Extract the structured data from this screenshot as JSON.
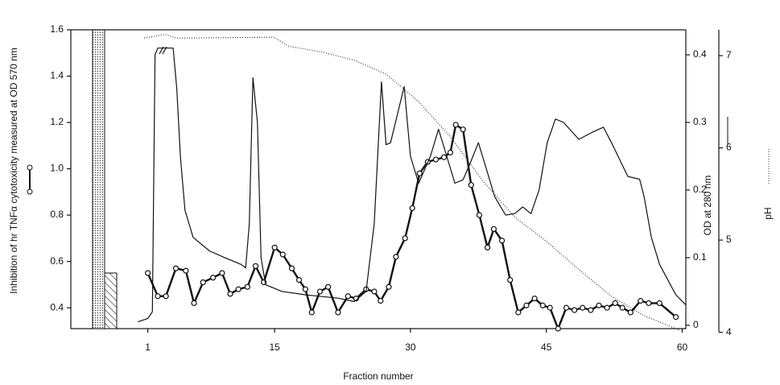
{
  "chart_data": {
    "type": "line",
    "x_label": "Fraction number",
    "y_label": "Inhibition of hr TNFα cytotoxicity measured at OD 570 nm",
    "y2_label": "OD at 280 nm",
    "y3_label": "pH",
    "xlim": [
      -7.5,
      60.4
    ],
    "xticks": [
      1,
      15,
      30,
      45,
      60
    ],
    "ylim": [
      0.31,
      1.6
    ],
    "yticks": [
      0.4,
      0.6,
      0.8,
      {
        "value": 1.0,
        "label": "1.0"
      },
      1.2,
      1.4,
      1.6
    ],
    "y2lim": [
      -0.005,
      0.437
    ],
    "y2ticks": [
      0,
      0.1,
      0.2,
      0.3,
      0.4
    ],
    "y3lim": [
      4.04,
      7.28
    ],
    "y3ticks": [
      4,
      5,
      6,
      7
    ],
    "control_bars": [
      1.6,
      0.55
    ],
    "series": [
      {
        "axis": "y",
        "color": "#111",
        "line_style": "solid",
        "marker": "circle",
        "x": [
          1.0,
          2.1,
          3.0,
          4.1,
          5.2,
          6.1,
          7.1,
          8.2,
          9.2,
          10.1,
          11.0,
          12.0,
          12.9,
          13.8,
          15.0,
          15.9,
          16.9,
          17.7,
          18.4,
          19.1,
          20.0,
          20.9,
          22.0,
          23.1,
          24.0,
          25.1,
          26.0,
          26.7,
          27.6,
          28.4,
          29.4,
          30.2,
          31.0,
          31.9,
          32.8,
          33.7,
          34.4,
          35.0,
          35.8,
          36.7,
          37.6,
          38.5,
          39.2,
          40.1,
          41.0,
          41.9,
          42.8,
          43.7,
          44.6,
          45.4,
          46.3,
          47.2,
          48.1,
          49.0,
          49.9,
          50.8,
          51.7,
          52.6,
          53.4,
          54.3,
          55.4,
          56.3,
          57.5,
          59.3
        ],
        "values": [
          0.55,
          0.45,
          0.45,
          0.57,
          0.56,
          0.42,
          0.51,
          0.53,
          0.55,
          0.46,
          0.48,
          0.49,
          0.58,
          0.51,
          0.66,
          0.63,
          0.57,
          0.52,
          0.48,
          0.38,
          0.47,
          0.49,
          0.38,
          0.45,
          0.44,
          0.48,
          0.47,
          0.43,
          0.49,
          0.62,
          0.7,
          0.83,
          0.98,
          1.03,
          1.04,
          1.05,
          1.07,
          1.19,
          1.17,
          0.93,
          0.8,
          0.66,
          0.74,
          0.69,
          0.52,
          0.38,
          0.41,
          0.44,
          0.41,
          0.4,
          0.31,
          0.4,
          0.39,
          0.4,
          0.39,
          0.41,
          0.4,
          0.42,
          0.4,
          0.38,
          0.43,
          0.42,
          0.42,
          0.36
        ]
      },
      {
        "axis": "y2",
        "color": "#111",
        "line_style": "solid",
        "marker": "none",
        "x": [
          -0.1,
          1.0,
          1.5,
          1.8,
          2.1,
          3.8,
          4.2,
          4.6,
          5.1,
          6.0,
          7.8,
          9.5,
          11.3,
          11.8,
          12.2,
          12.6,
          13.1,
          13.5,
          14.0,
          15.8,
          18.4,
          22.0,
          23.8,
          25.1,
          26.0,
          26.8,
          27.3,
          27.8,
          29.3,
          30.0,
          30.9,
          32.2,
          33.1,
          34.0,
          34.9,
          35.8,
          36.6,
          37.5,
          38.4,
          39.3,
          40.5,
          41.5,
          42.4,
          43.3,
          44.2,
          45.1,
          46.0,
          46.9,
          48.6,
          50.0,
          51.3,
          52.2,
          53.1,
          54.0,
          55.3,
          55.8,
          56.6,
          57.5,
          59.3,
          60.4
        ],
        "values": [
          0.005,
          0.01,
          0.02,
          0.4,
          0.41,
          0.41,
          0.35,
          0.25,
          0.17,
          0.13,
          0.11,
          0.1,
          0.09,
          0.085,
          0.15,
          0.366,
          0.3,
          0.1,
          0.06,
          0.05,
          0.045,
          0.04,
          0.035,
          0.05,
          0.15,
          0.36,
          0.267,
          0.27,
          0.353,
          0.25,
          0.21,
          0.25,
          0.29,
          0.25,
          0.21,
          0.215,
          0.24,
          0.27,
          0.23,
          0.19,
          0.163,
          0.165,
          0.175,
          0.165,
          0.2,
          0.27,
          0.305,
          0.3,
          0.275,
          0.285,
          0.293,
          0.27,
          0.245,
          0.22,
          0.216,
          0.19,
          0.13,
          0.09,
          0.045,
          0.03
        ]
      },
      {
        "axis": "y3",
        "color": "#333",
        "line_style": "dotted",
        "marker": "none",
        "x": [
          0.6,
          2.9,
          4.2,
          14.9,
          16.6,
          20.2,
          23.8,
          27.3,
          30.9,
          34.4,
          38.0,
          41.5,
          45.1,
          48.6,
          52.2,
          55.8,
          59.8
        ],
        "values": [
          7.19,
          7.23,
          7.19,
          7.2,
          7.1,
          7.04,
          6.95,
          6.8,
          6.5,
          6.12,
          5.64,
          5.25,
          4.98,
          4.68,
          4.39,
          4.18,
          4.02
        ]
      }
    ]
  }
}
